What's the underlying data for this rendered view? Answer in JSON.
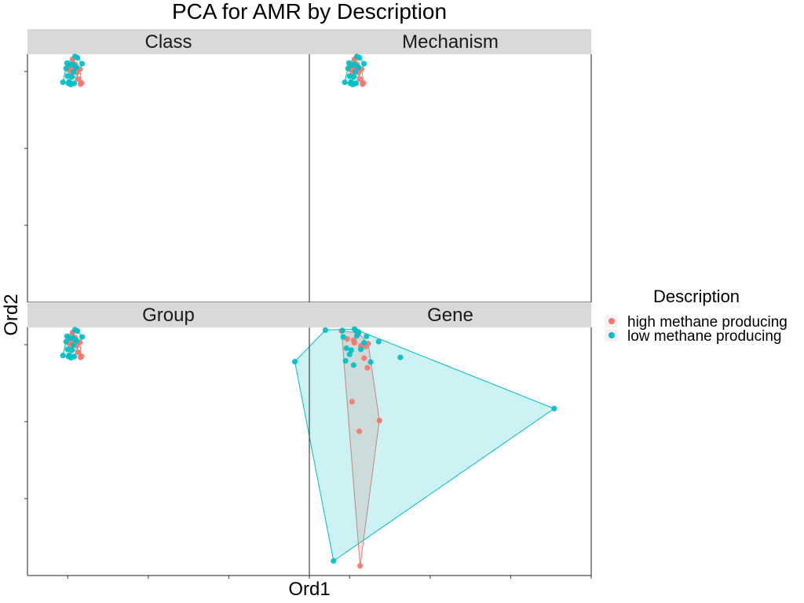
{
  "chart_data": {
    "type": "scatter",
    "title": "PCA for AMR by Description",
    "xlabel": "Ord1",
    "ylabel": "Ord2",
    "legend": {
      "title": "Description",
      "position": "right",
      "entries": [
        "high methane producing",
        "low methane producing"
      ]
    },
    "colors": {
      "high methane producing": "#F8766D",
      "low methane producing": "#00BFC4"
    },
    "xlim": [
      -0.5,
      3.0
    ],
    "ylim": [
      -6.0,
      0.45
    ],
    "x_ticks": [
      0,
      1,
      2,
      3
    ],
    "y_ticks": [
      -4,
      -2,
      0
    ],
    "tick_labels_shown": false,
    "convex_hulls": true,
    "grid": false,
    "panels": [
      {
        "label": "Class",
        "series": [
          {
            "name": "high methane producing",
            "x": [
              0.06,
              0.02,
              0.15,
              0.11,
              0.13,
              0.17,
              0.01,
              0.16,
              0.05,
              0.08,
              0.04,
              0.09
            ],
            "y": [
              0.32,
              0.16,
              0.06,
              -0.02,
              -0.2,
              -0.3,
              0.05,
              -0.33,
              0.1,
              0.15,
              -0.02,
              0.18
            ]
          },
          {
            "name": "low methane producing",
            "x": [
              -0.01,
              0.03,
              0.09,
              0.12,
              0.18,
              0.07,
              0.05,
              0.0,
              -0.06,
              0.01,
              0.04,
              -0.02,
              0.06,
              0.11,
              0.08,
              0.02,
              0.1
            ],
            "y": [
              0.22,
              0.18,
              0.39,
              0.36,
              0.2,
              -0.01,
              -0.14,
              -0.12,
              -0.28,
              -0.31,
              -0.34,
              0.08,
              0.18,
              0.1,
              -0.31,
              -0.27,
              0.12
            ]
          }
        ]
      },
      {
        "label": "Mechanism",
        "series": [
          {
            "name": "high methane producing",
            "x": [
              0.06,
              0.02,
              0.15,
              0.11,
              0.13,
              0.17,
              0.01,
              0.16,
              0.05,
              0.08,
              0.04,
              0.09
            ],
            "y": [
              0.32,
              0.16,
              0.06,
              -0.02,
              -0.2,
              -0.3,
              0.05,
              -0.33,
              0.1,
              0.15,
              -0.02,
              0.18
            ]
          },
          {
            "name": "low methane producing",
            "x": [
              -0.01,
              0.03,
              0.09,
              0.12,
              0.18,
              0.07,
              0.05,
              0.0,
              -0.06,
              0.01,
              0.04,
              -0.02,
              0.06,
              0.11,
              0.08,
              0.02,
              0.1
            ],
            "y": [
              0.22,
              0.18,
              0.39,
              0.36,
              0.2,
              -0.01,
              -0.14,
              -0.12,
              -0.28,
              -0.31,
              -0.34,
              0.08,
              0.18,
              0.1,
              -0.31,
              -0.27,
              0.12
            ]
          }
        ]
      },
      {
        "label": "Group",
        "series": [
          {
            "name": "high methane producing",
            "x": [
              0.06,
              0.02,
              0.15,
              0.11,
              0.13,
              0.17,
              0.01,
              0.16,
              0.05,
              0.08,
              0.04,
              0.09
            ],
            "y": [
              0.32,
              0.16,
              0.06,
              -0.02,
              -0.2,
              -0.3,
              0.05,
              -0.33,
              0.1,
              0.15,
              -0.02,
              0.18
            ]
          },
          {
            "name": "low methane producing",
            "x": [
              -0.01,
              0.03,
              0.09,
              0.12,
              0.18,
              0.07,
              0.05,
              0.0,
              -0.06,
              0.01,
              0.04,
              -0.02,
              0.06,
              0.11,
              0.08,
              0.02,
              0.1
            ],
            "y": [
              0.22,
              0.18,
              0.39,
              0.36,
              0.2,
              -0.01,
              -0.14,
              -0.12,
              -0.28,
              -0.31,
              -0.34,
              0.08,
              0.18,
              0.1,
              -0.31,
              -0.27,
              0.12
            ]
          }
        ]
      },
      {
        "label": "Gene",
        "series": [
          {
            "name": "high methane producing",
            "x": [
              -0.1,
              0.1,
              0.11,
              0.22,
              0.12,
              0.2,
              0.05,
              -0.03,
              0.14,
              0.18,
              0.03,
              0.23,
              0.37,
              0.06,
              0.13
            ],
            "y": [
              0.36,
              0.27,
              0.3,
              -0.6,
              -2.25,
              -0.05,
              0.12,
              0.15,
              -0.03,
              -0.35,
              -1.48,
              0.03,
              -1.97,
              0.05,
              -5.75
            ]
          },
          {
            "name": "low methane producing",
            "x": [
              -0.3,
              -0.68,
              -0.09,
              -0.05,
              0.06,
              0.09,
              0.11,
              0.08,
              -0.04,
              0.0,
              0.21,
              0.36,
              0.05,
              0.26,
              -0.08,
              0.14,
              0.18,
              0.02,
              2.54,
              0.63,
              -0.2
            ],
            "y": [
              0.38,
              -0.44,
              0.37,
              -0.42,
              0.41,
              0.23,
              0.33,
              0.36,
              -0.09,
              -0.25,
              0.22,
              0.08,
              -0.53,
              -0.45,
              0.2,
              -0.12,
              0.05,
              -0.14,
              -1.66,
              -0.33,
              -5.62
            ]
          }
        ]
      }
    ]
  }
}
